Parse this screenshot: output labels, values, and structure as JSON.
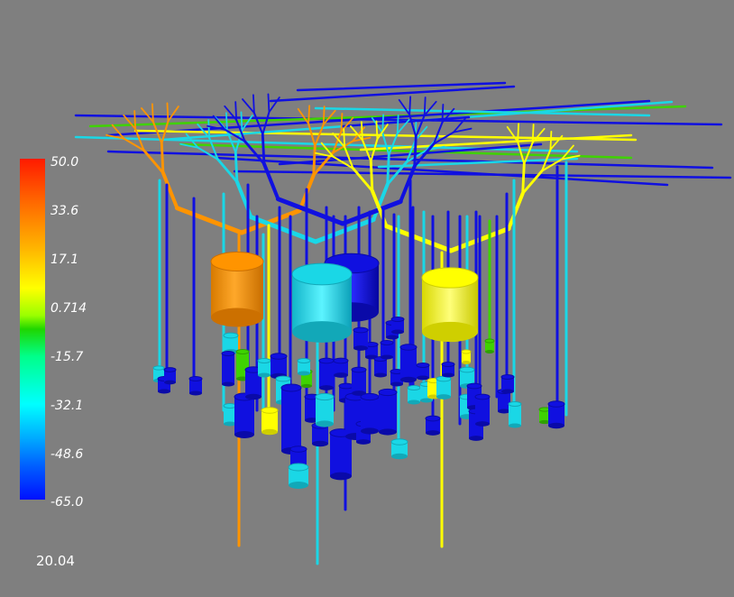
{
  "colorbar": {
    "ticks": [
      "50.0",
      "33.6",
      "17.1",
      "0.714",
      "-15.7",
      "-32.1",
      "-48.6",
      "-65.0"
    ],
    "max": 50.0,
    "min": -65.0
  },
  "time_label": "20.04",
  "neurons": [
    {
      "color": "#ff9a00",
      "value": 36
    },
    {
      "color": "#00e6ff",
      "value": -32
    },
    {
      "color": "#ffff00",
      "value": 22
    },
    {
      "color": "#1010ff",
      "value": -64
    }
  ],
  "colors": {
    "background": "#7f7f7f",
    "deep_blue": "#1010e0",
    "cyan": "#1ad7e6",
    "orange": "#ff9400",
    "yellow": "#ffff00",
    "green": "#3fd200"
  }
}
